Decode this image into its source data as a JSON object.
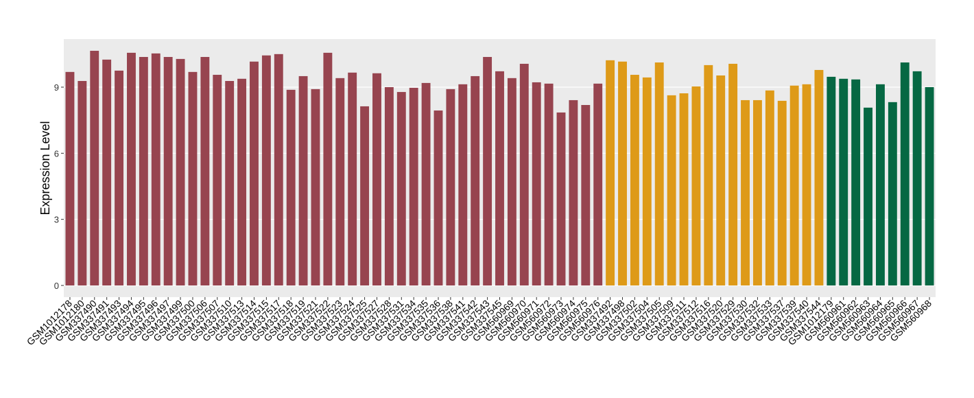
{
  "chart_data": {
    "type": "bar",
    "y_label": "Expression Level",
    "ylim": [
      -0.53,
      11.18
    ],
    "yticks": [
      0,
      3,
      6,
      9
    ],
    "grid": true,
    "groups": [
      {
        "color": "#97444f",
        "categories": [
          "GSM1012178",
          "GSM1012180",
          "GSM337490",
          "GSM337491",
          "GSM337493",
          "GSM337494",
          "GSM337495",
          "GSM337496",
          "GSM337497",
          "GSM337499",
          "GSM337500",
          "GSM337506",
          "GSM337507",
          "GSM337510",
          "GSM337513",
          "GSM337514",
          "GSM337515",
          "GSM337517",
          "GSM337518",
          "GSM337519",
          "GSM337521",
          "GSM337522",
          "GSM337523",
          "GSM337524",
          "GSM337525",
          "GSM337527",
          "GSM337528",
          "GSM337531",
          "GSM337534",
          "GSM337535",
          "GSM337536",
          "GSM337538",
          "GSM337541",
          "GSM337542",
          "GSM337543",
          "GSM337545",
          "GSM560969",
          "GSM560970",
          "GSM560971",
          "GSM560972",
          "GSM560973",
          "GSM560974",
          "GSM560975",
          "GSM560976"
        ],
        "values": [
          9.69,
          9.28,
          10.65,
          10.25,
          9.75,
          10.56,
          10.37,
          10.53,
          10.37,
          10.28,
          9.69,
          10.37,
          9.56,
          9.28,
          9.38,
          10.16,
          10.44,
          10.5,
          8.88,
          9.5,
          8.91,
          10.56,
          9.41,
          9.66,
          8.13,
          9.63,
          9.0,
          8.78,
          8.97,
          9.19,
          7.94,
          8.91,
          9.13,
          9.5,
          10.37,
          9.72,
          9.41,
          10.06,
          9.22,
          9.16,
          7.85,
          8.41,
          8.19,
          9.16
        ]
      },
      {
        "color": "#de9a18",
        "categories": [
          "GSM337492",
          "GSM337498",
          "GSM337502",
          "GSM337504",
          "GSM337505",
          "GSM337509",
          "GSM337511",
          "GSM337512",
          "GSM337516",
          "GSM337520",
          "GSM337529",
          "GSM337530",
          "GSM337532",
          "GSM337533",
          "GSM337537",
          "GSM337539",
          "GSM337540",
          "GSM337544"
        ],
        "values": [
          10.22,
          10.16,
          9.56,
          9.44,
          10.12,
          8.63,
          8.72,
          9.03,
          10.0,
          9.53,
          10.06,
          8.41,
          8.41,
          8.85,
          8.38,
          9.07,
          9.13,
          9.78
        ]
      },
      {
        "color": "#066843",
        "categories": [
          "GSM1012179",
          "GSM560961",
          "GSM560962",
          "GSM560963",
          "GSM560964",
          "GSM560965",
          "GSM560966",
          "GSM560967",
          "GSM560968"
        ],
        "values": [
          9.47,
          9.38,
          9.35,
          8.07,
          9.13,
          8.32,
          10.12,
          9.72,
          9.0
        ]
      }
    ]
  }
}
